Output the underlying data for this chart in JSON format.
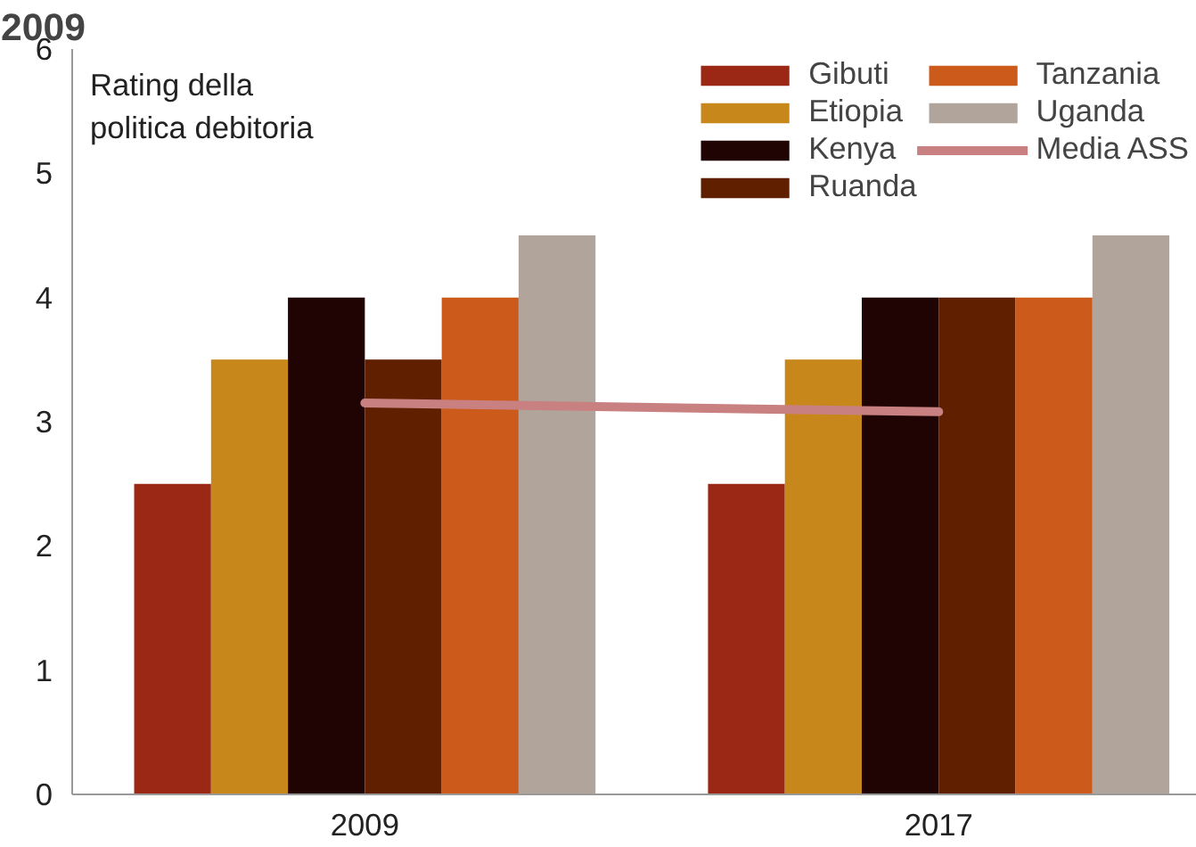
{
  "chart_data": {
    "type": "bar",
    "title": "2009",
    "ylabel": "Rating della\npolitica debitoria",
    "categories": [
      "2009",
      "2017"
    ],
    "series": [
      {
        "name": "Gibuti",
        "color": "#9a2815",
        "values": [
          2.5,
          2.5
        ]
      },
      {
        "name": "Etiopia",
        "color": "#c8871b",
        "values": [
          3.5,
          3.5
        ]
      },
      {
        "name": "Kenya",
        "color": "#200303",
        "values": [
          4,
          4
        ]
      },
      {
        "name": "Ruanda",
        "color": "#602000",
        "values": [
          3.5,
          4
        ]
      },
      {
        "name": "Tanzania",
        "color": "#cb5a1b",
        "values": [
          4,
          4
        ]
      },
      {
        "name": "Uganda",
        "color": "#b0a49b",
        "values": [
          4.5,
          4.5
        ]
      },
      {
        "name": "Media ASS",
        "type": "line",
        "color": "#c98080",
        "values": [
          3.15,
          3.08
        ]
      }
    ],
    "ylim": [
      0,
      6
    ],
    "yticks": [
      0,
      1,
      2,
      3,
      4,
      5,
      6
    ],
    "grid": false,
    "legend": "top right"
  }
}
